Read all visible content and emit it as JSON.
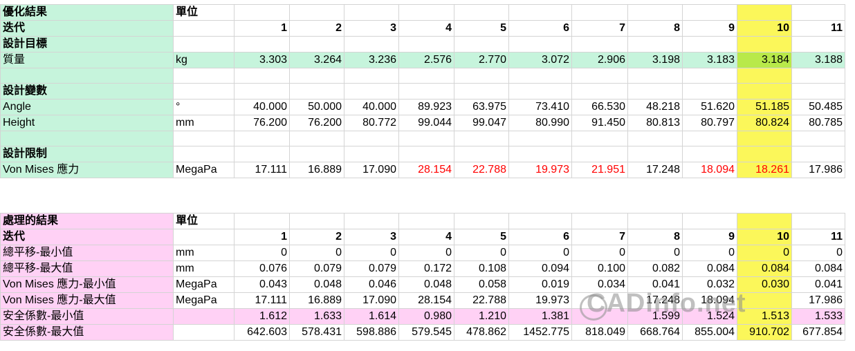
{
  "table1": {
    "title": "優化結果",
    "unit_header": "單位",
    "iter_label": "迭代",
    "iterations": [
      "1",
      "2",
      "3",
      "4",
      "5",
      "6",
      "7",
      "8",
      "9",
      "10",
      "11"
    ],
    "sections": [
      {
        "label": "設計目標",
        "rows": [
          {
            "name": "質量",
            "unit": "kg",
            "values": [
              "3.303",
              "3.264",
              "3.236",
              "2.576",
              "2.770",
              "3.072",
              "2.906",
              "3.198",
              "3.183",
              "3.184",
              "3.188"
            ],
            "red": []
          }
        ]
      },
      {
        "label": "設計變數",
        "rows": [
          {
            "name": "Angle",
            "unit": "°",
            "values": [
              "40.000",
              "50.000",
              "40.000",
              "89.923",
              "63.975",
              "73.410",
              "66.530",
              "48.218",
              "51.620",
              "51.185",
              "50.485"
            ],
            "red": []
          },
          {
            "name": "Height",
            "unit": "mm",
            "values": [
              "76.200",
              "76.200",
              "80.772",
              "99.044",
              "99.047",
              "80.990",
              "91.450",
              "80.813",
              "80.797",
              "80.824",
              "80.785"
            ],
            "red": []
          }
        ]
      },
      {
        "label": "設計限制",
        "rows": [
          {
            "name": "Von Mises 應力",
            "unit": "MegaPa",
            "values": [
              "17.111",
              "16.889",
              "17.090",
              "28.154",
              "22.788",
              "19.973",
              "21.951",
              "17.248",
              "18.094",
              "18.261",
              "17.986"
            ],
            "red": [
              3,
              4,
              5,
              6,
              8,
              9
            ]
          }
        ]
      }
    ]
  },
  "table2": {
    "title": "處理的結果",
    "unit_header": "單位",
    "iter_label": "迭代",
    "iterations": [
      "1",
      "2",
      "3",
      "4",
      "5",
      "6",
      "7",
      "8",
      "9",
      "10",
      "11"
    ],
    "rows": [
      {
        "name": "總平移-最小值",
        "unit": "mm",
        "values": [
          "0",
          "0",
          "0",
          "0",
          "0",
          "0",
          "0",
          "0",
          "0",
          "0",
          "0"
        ]
      },
      {
        "name": "總平移-最大值",
        "unit": "mm",
        "values": [
          "0.076",
          "0.079",
          "0.079",
          "0.172",
          "0.108",
          "0.094",
          "0.100",
          "0.082",
          "0.084",
          "0.084",
          "0.084"
        ]
      },
      {
        "name": "Von Mises 應力-最小值",
        "unit": "MegaPa",
        "values": [
          "0.043",
          "0.048",
          "0.046",
          "0.048",
          "0.058",
          "0.019",
          "0.034",
          "0.041",
          "0.032",
          "0.030",
          "0.041"
        ]
      },
      {
        "name": "Von Mises 應力-最大值",
        "unit": "MegaPa",
        "values": [
          "17.111",
          "16.889",
          "17.090",
          "28.154",
          "22.788",
          "19.973",
          "",
          "17.248",
          "18.094",
          "",
          "17.986"
        ]
      },
      {
        "name": "安全係數-最小值",
        "unit": "",
        "values": [
          "1.612",
          "1.633",
          "1.614",
          "0.980",
          "1.210",
          "1.381",
          "",
          "1.599",
          "1.524",
          "1.513",
          "1.533"
        ]
      },
      {
        "name": "安全係數-最大值",
        "unit": "",
        "values": [
          "642.603",
          "578.431",
          "598.886",
          "579.545",
          "478.862",
          "1452.775",
          "818.049",
          "668.764",
          "855.004",
          "910.702",
          "677.854"
        ]
      }
    ]
  },
  "highlight_column_index": 9,
  "colors": {
    "green": "#c6f4dc",
    "pink": "#ffd1f5",
    "yellow": "#fbf75a",
    "red": "#ff0000"
  },
  "watermark_text": "CADinfo.net"
}
